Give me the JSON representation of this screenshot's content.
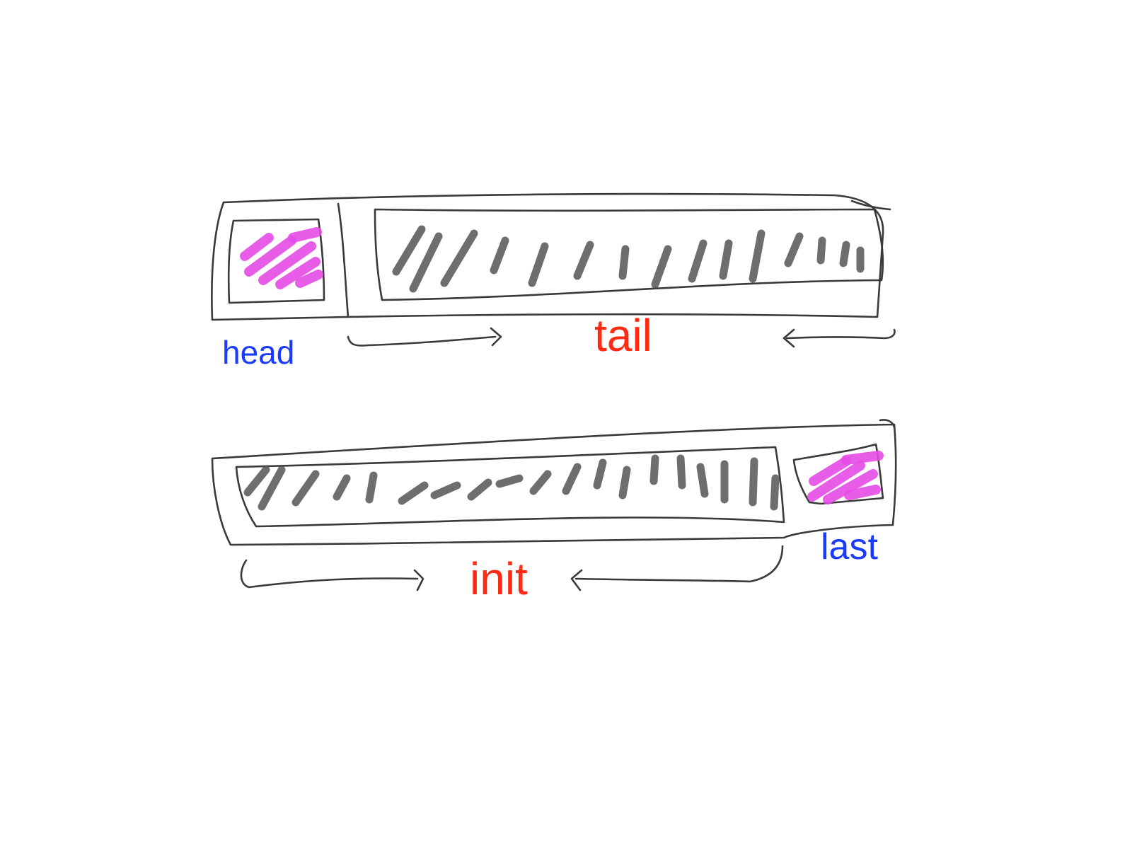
{
  "diagrams": {
    "top": {
      "label_element": "head",
      "label_rest": "tail"
    },
    "bottom": {
      "label_element": "last",
      "label_rest": "init"
    }
  },
  "colors": {
    "element_label": "#1a3bff",
    "rest_label": "#ff2a12",
    "highlight": "#e64ce6",
    "outline": "#3a3a3a",
    "hatch": "#555555"
  }
}
